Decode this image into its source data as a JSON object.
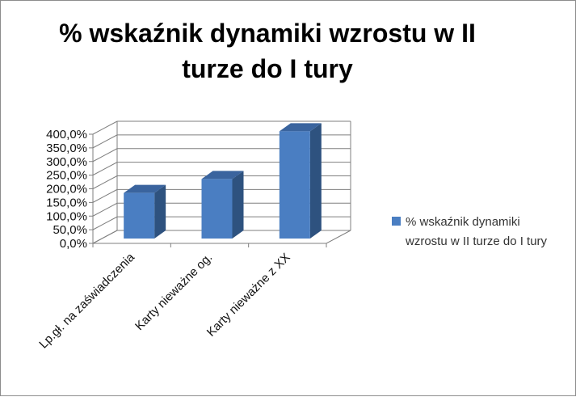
{
  "chart_data": {
    "type": "bar",
    "title": "% wskaźnik dynamiki wzrostu w II turze do I tury",
    "categories": [
      "Lp.gł. na zaświadczenia",
      "Karty nieważne og.",
      "Karty nieważne z XX"
    ],
    "series": [
      {
        "name": "% wskaźnik dynamiki wzrostu w II turze do I tury",
        "values": [
          167,
          218,
          393
        ]
      }
    ],
    "ylim": [
      0,
      400
    ],
    "y_ticks": [
      "0,0%",
      "50,0%",
      "100,0%",
      "150,0%",
      "200,0%",
      "250,0%",
      "300,0%",
      "350,0%",
      "400,0%"
    ],
    "xlabel": "",
    "ylabel": "",
    "grid": true,
    "legend_position": "right",
    "style": "3d-column",
    "colors": {
      "bar_front": "#4a7ec2",
      "bar_side": "#2e527f",
      "bar_top": "#3a649e",
      "gridline": "#7f7f7f"
    }
  }
}
